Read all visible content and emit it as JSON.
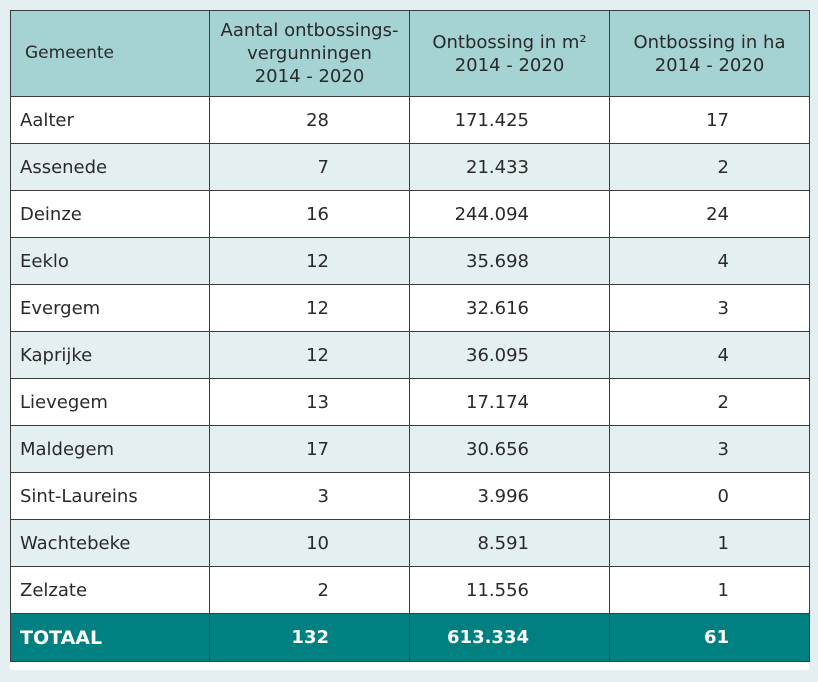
{
  "table": {
    "headers": {
      "gemeente": "Gemeente",
      "vergunningen": [
        "Aantal ontbossings-",
        "vergunningen",
        "2014 - 2020"
      ],
      "m2": [
        "Ontbossing in m²",
        "2014 - 2020"
      ],
      "ha": [
        "Ontbossing in ha",
        "2014 - 2020"
      ]
    },
    "rows": [
      {
        "gemeente": "Aalter",
        "vergunningen": "28",
        "m2": "171.425",
        "ha": "17"
      },
      {
        "gemeente": "Assenede",
        "vergunningen": "7",
        "m2": "21.433",
        "ha": "2"
      },
      {
        "gemeente": "Deinze",
        "vergunningen": "16",
        "m2": "244.094",
        "ha": "24"
      },
      {
        "gemeente": "Eeklo",
        "vergunningen": "12",
        "m2": "35.698",
        "ha": "4"
      },
      {
        "gemeente": "Evergem",
        "vergunningen": "12",
        "m2": "32.616",
        "ha": "3"
      },
      {
        "gemeente": "Kaprijke",
        "vergunningen": "12",
        "m2": "36.095",
        "ha": "4"
      },
      {
        "gemeente": "Lievegem",
        "vergunningen": "13",
        "m2": "17.174",
        "ha": "2"
      },
      {
        "gemeente": "Maldegem",
        "vergunningen": "17",
        "m2": "30.656",
        "ha": "3"
      },
      {
        "gemeente": "Sint-Laureins",
        "vergunningen": "3",
        "m2": "3.996",
        "ha": "0"
      },
      {
        "gemeente": "Wachtebeke",
        "vergunningen": "10",
        "m2": "8.591",
        "ha": "1"
      },
      {
        "gemeente": "Zelzate",
        "vergunningen": "2",
        "m2": "11.556",
        "ha": "1"
      }
    ],
    "total": {
      "label": "TOTAAL",
      "vergunningen": "132",
      "m2": "613.334",
      "ha": "61"
    }
  },
  "colors": {
    "header_bg": "#a5d2d3",
    "stripe_bg": "#e3eff0",
    "total_bg": "#008080",
    "page_bg": "#e3eff0"
  }
}
